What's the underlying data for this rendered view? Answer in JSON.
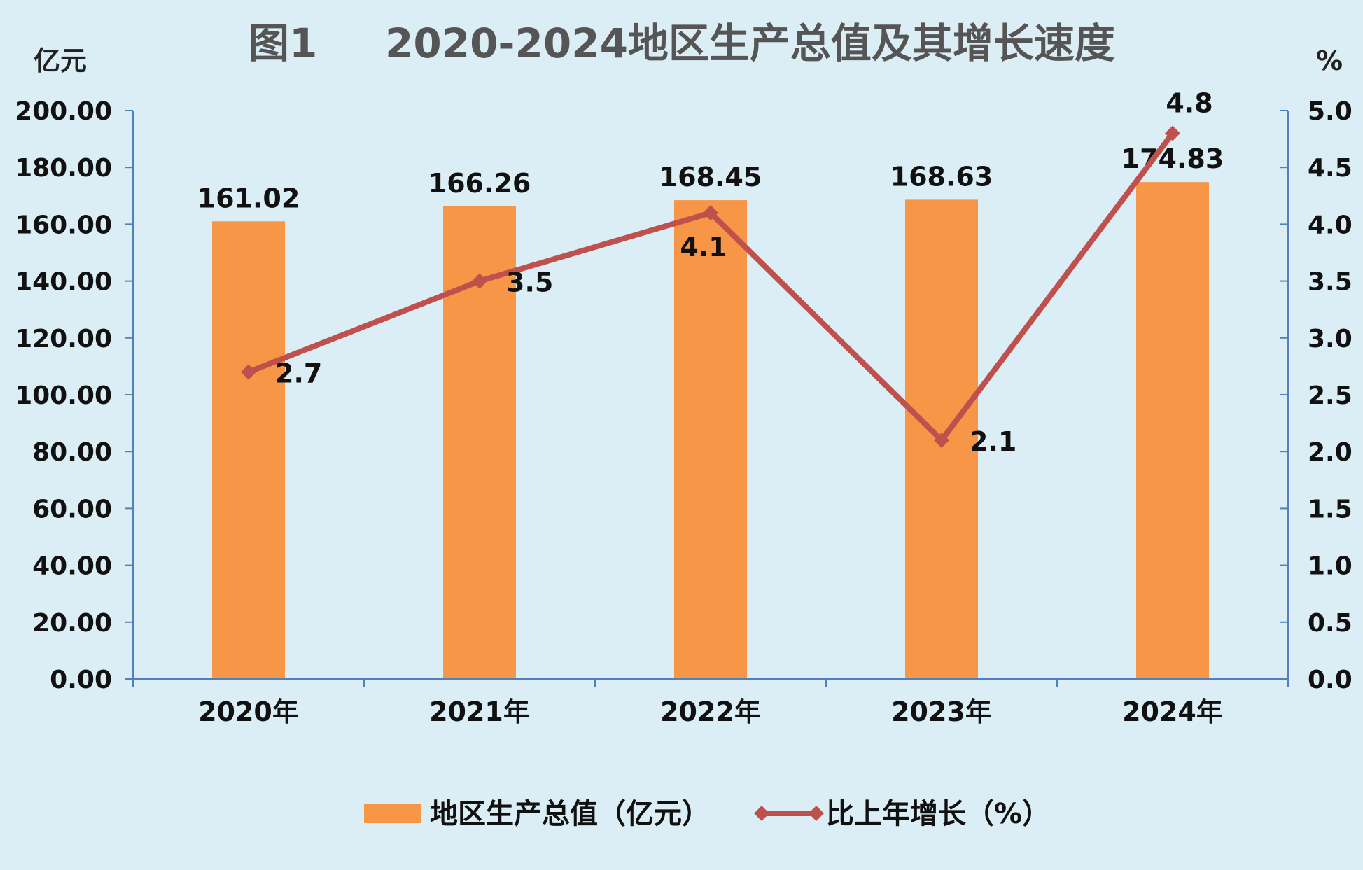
{
  "chart_data": {
    "type": "bar",
    "title_prefix": "图1",
    "title_main": "2020-2024地区生产总值及其增长速度",
    "categories": [
      "2020年",
      "2021年",
      "2022年",
      "2023年",
      "2024年"
    ],
    "left_axis": {
      "unit": "亿元",
      "ylim": [
        0,
        200
      ],
      "ticks": [
        "0.00",
        "20.00",
        "40.00",
        "60.00",
        "80.00",
        "100.00",
        "120.00",
        "140.00",
        "160.00",
        "180.00",
        "200.00"
      ]
    },
    "right_axis": {
      "unit": "%",
      "ylim": [
        0,
        5
      ],
      "ticks": [
        "0.0",
        "0.5",
        "1.0",
        "1.5",
        "2.0",
        "2.5",
        "3.0",
        "3.5",
        "4.0",
        "4.5",
        "5.0"
      ]
    },
    "series": [
      {
        "name": "地区生产总值（亿元）",
        "type": "bar",
        "axis": "left",
        "color": "#f79646",
        "values": [
          161.02,
          166.26,
          168.45,
          168.63,
          174.83
        ],
        "labels": [
          "161.02",
          "166.26",
          "168.45",
          "168.63",
          "174.83"
        ]
      },
      {
        "name": "比上年增长（%）",
        "type": "line",
        "axis": "right",
        "color": "#c0504d",
        "values": [
          2.7,
          3.5,
          4.1,
          2.1,
          4.8
        ],
        "labels": [
          "2.7",
          "3.5",
          "4.1",
          "2.1",
          "4.8"
        ]
      }
    ],
    "legend_position": "bottom",
    "grid": false
  }
}
